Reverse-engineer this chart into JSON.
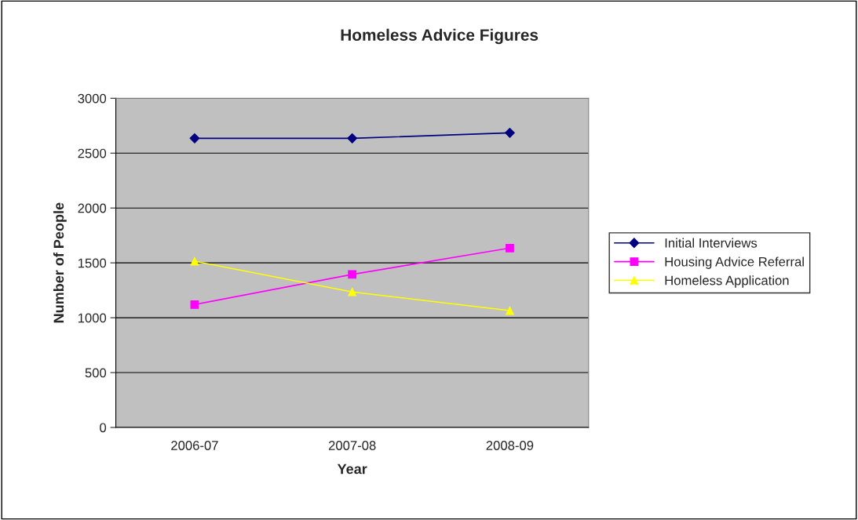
{
  "chart_data": {
    "type": "line",
    "title": "Homeless Advice Figures",
    "xlabel": "Year",
    "ylabel": "Number of People",
    "categories": [
      "2006-07",
      "2007-08",
      "2008-09"
    ],
    "series": [
      {
        "name": "Initial Interviews",
        "color": "#000080",
        "marker": "diamond",
        "values": [
          2635,
          2635,
          2685
        ]
      },
      {
        "name": "Housing Advice Referral",
        "color": "#ff00ff",
        "marker": "square",
        "values": [
          1120,
          1395,
          1635
        ]
      },
      {
        "name": "Homeless Application",
        "color": "#ffff00",
        "marker": "triangle",
        "values": [
          1515,
          1235,
          1065
        ]
      }
    ],
    "ylim": [
      0,
      3000
    ],
    "yticks": [
      0,
      500,
      1000,
      1500,
      2000,
      2500,
      3000
    ],
    "grid": "y",
    "legend": "right"
  }
}
